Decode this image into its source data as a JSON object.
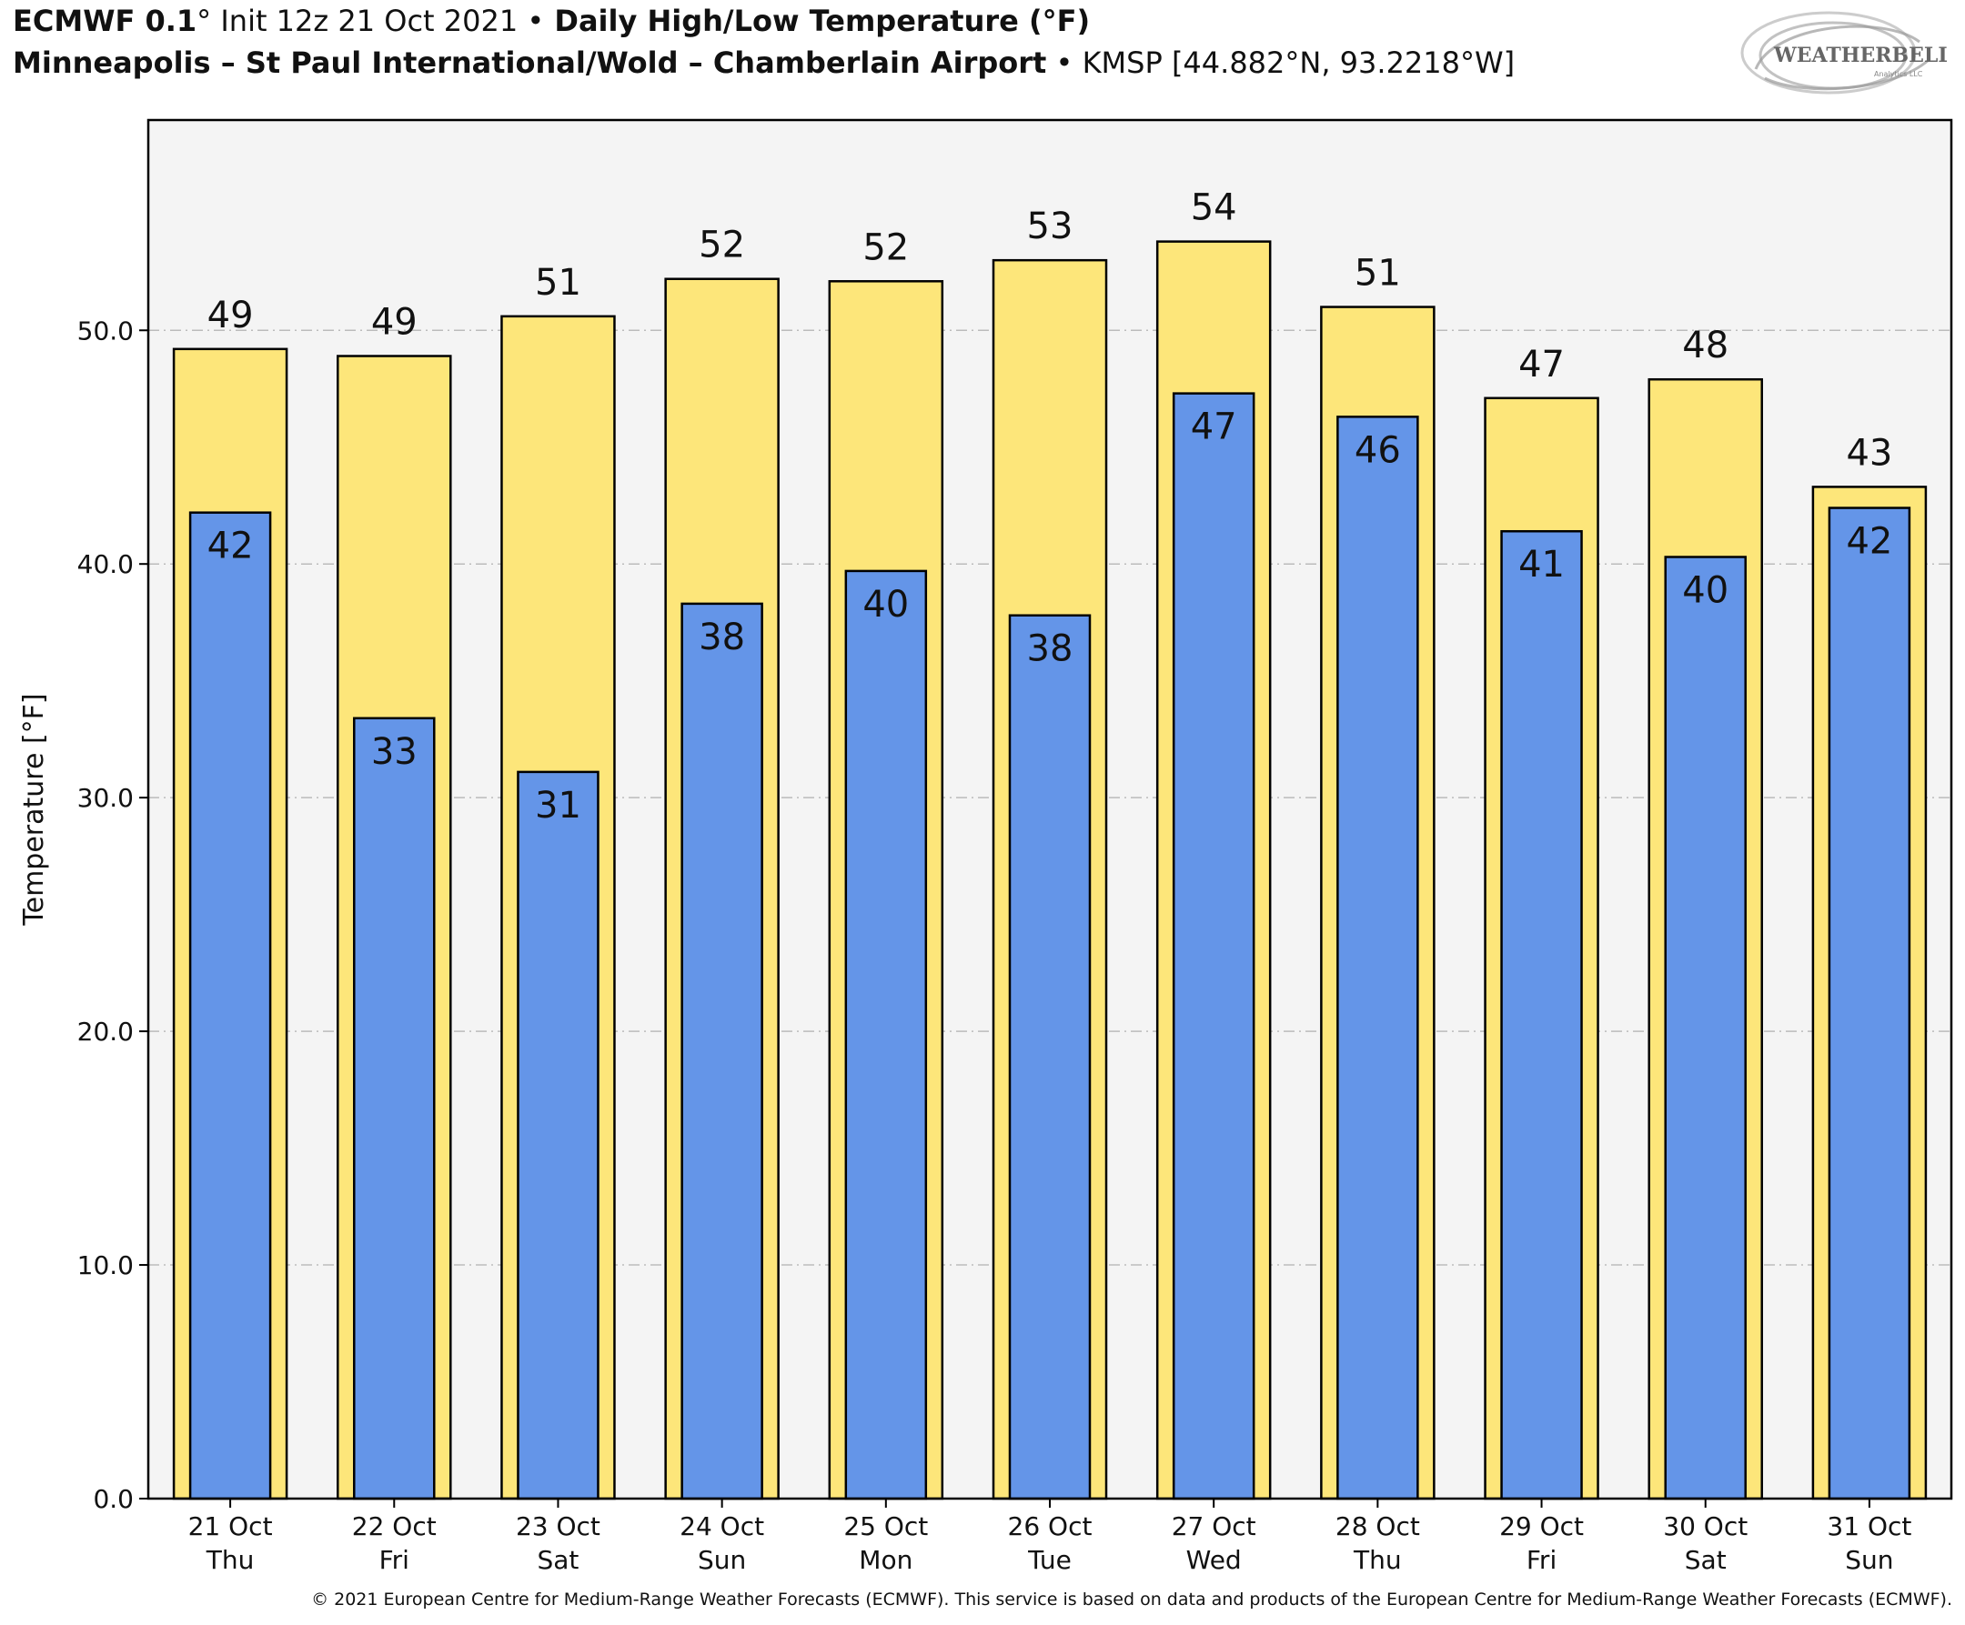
{
  "header": {
    "model": "ECMWF 0.1",
    "model_unit": "°",
    "init": " Init 12z 21 Oct 2021 ",
    "separator": "•",
    "product": " Daily High/Low Temperature (°F)",
    "station_name": "Minneapolis – St Paul International/Wold – Chamberlain Airport",
    "station_detail": " KMSP [44.882°N, 93.2218°W]"
  },
  "logo": {
    "text": "WEATHERBELL",
    "sub": "Analytics LLC"
  },
  "footer": {
    "copyright": "© 2021 European Centre for Medium-Range Weather Forecasts (ECMWF). This service is based on data and products of the European Centre for Medium-Range Weather Forecasts (ECMWF)."
  },
  "colors": {
    "high": "#fde67a",
    "low": "#6495e8",
    "plot_bg": "#f4f4f4",
    "grid": "#bbbbbb"
  },
  "chart_data": {
    "type": "bar",
    "title": "Daily High/Low Temperature (°F)",
    "xlabel": "",
    "ylabel": "Temperature [°F]",
    "ylim": [
      0,
      59
    ],
    "yticks": [
      0,
      10,
      20,
      30,
      40,
      50
    ],
    "ytick_labels": [
      "0.0",
      "10.0",
      "20.0",
      "30.0",
      "40.0",
      "50.0"
    ],
    "grid": true,
    "categories": [
      [
        "21 Oct",
        "Thu"
      ],
      [
        "22 Oct",
        "Fri"
      ],
      [
        "23 Oct",
        "Sat"
      ],
      [
        "24 Oct",
        "Sun"
      ],
      [
        "25 Oct",
        "Mon"
      ],
      [
        "26 Oct",
        "Tue"
      ],
      [
        "27 Oct",
        "Wed"
      ],
      [
        "28 Oct",
        "Thu"
      ],
      [
        "29 Oct",
        "Fri"
      ],
      [
        "30 Oct",
        "Sat"
      ],
      [
        "31 Oct",
        "Sun"
      ]
    ],
    "series": [
      {
        "name": "High",
        "values": [
          49.2,
          48.9,
          50.6,
          52.2,
          52.1,
          53.0,
          53.8,
          51.0,
          47.1,
          47.9,
          43.3
        ],
        "labels": [
          "49",
          "49",
          "51",
          "52",
          "52",
          "53",
          "54",
          "51",
          "47",
          "48",
          "43"
        ]
      },
      {
        "name": "Low",
        "values": [
          42.2,
          33.4,
          31.1,
          38.3,
          39.7,
          37.8,
          47.3,
          46.3,
          41.4,
          40.3,
          42.4
        ],
        "labels": [
          "42",
          "33",
          "31",
          "38",
          "40",
          "38",
          "47",
          "46",
          "41",
          "40",
          "42"
        ]
      }
    ]
  }
}
